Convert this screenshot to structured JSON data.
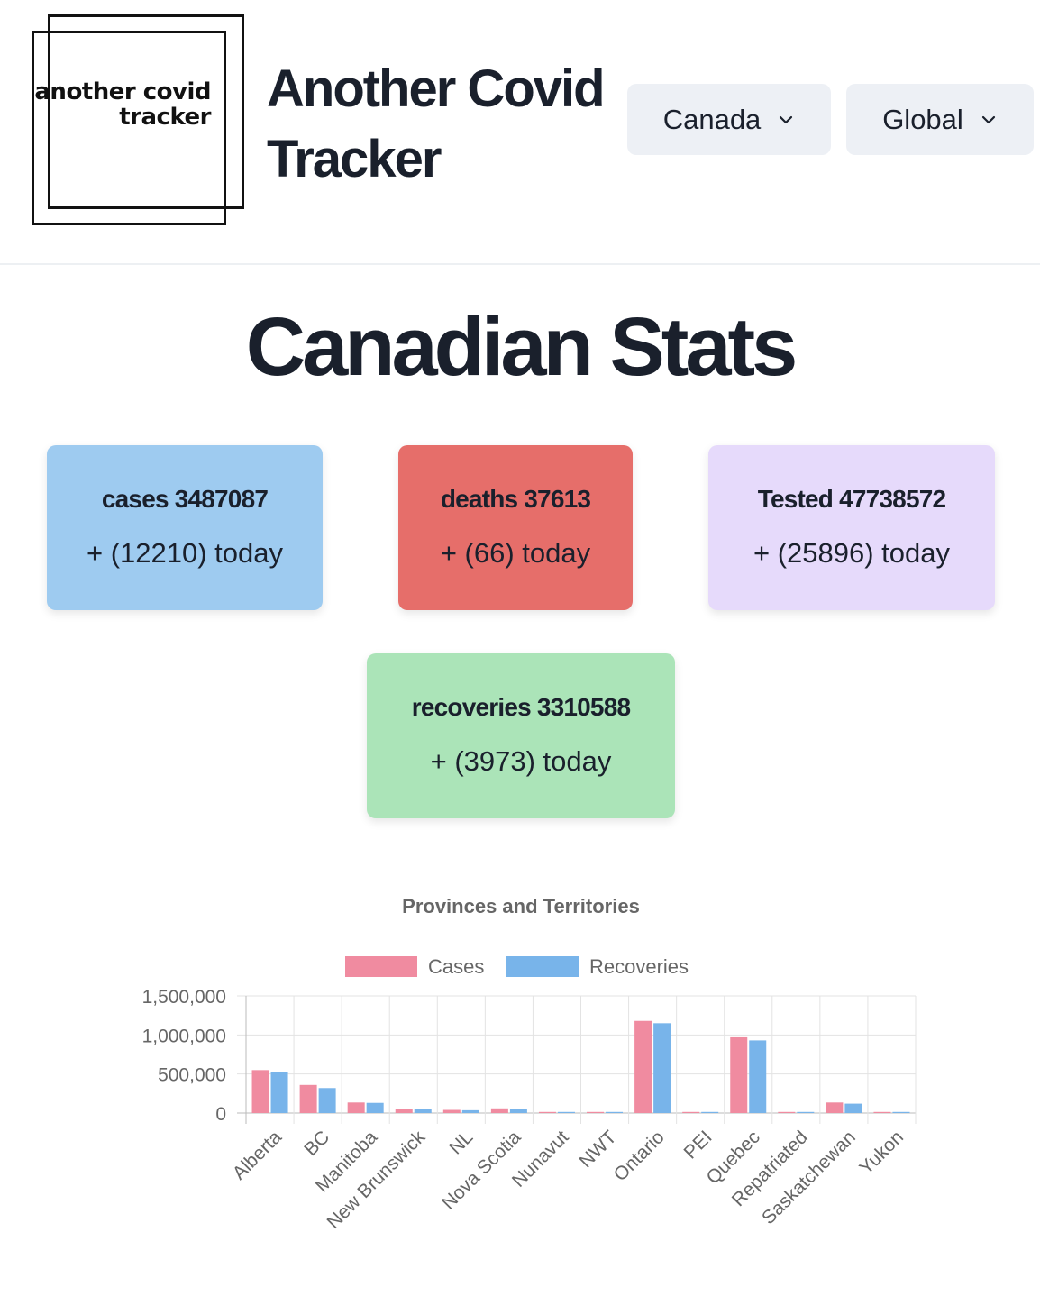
{
  "header": {
    "logo_line1": "another covid",
    "logo_line2": "tracker",
    "title_line1": "Another Covid",
    "title_line2": "Tracker",
    "country_select": "Canada",
    "scope_select": "Global"
  },
  "page_title": "Canadian Stats",
  "stats": {
    "cases": {
      "title": "cases 3487087",
      "today": "+ (12210) today",
      "color": "#9ecbf0"
    },
    "deaths": {
      "title": "deaths 37613",
      "today": "+ (66) today",
      "color": "#e66e6a"
    },
    "tested": {
      "title": "Tested 47738572",
      "today": "+ (25896) today",
      "color": "#e6dafb"
    },
    "recoveries": {
      "title": "recoveries 3310588",
      "today": "+ (3973) today",
      "color": "#abe4b8"
    }
  },
  "chart_data": {
    "type": "bar",
    "title": "Provinces and Territories",
    "categories": [
      "Alberta",
      "BC",
      "Manitoba",
      "New Brunswick",
      "NL",
      "Nova Scotia",
      "Nunavut",
      "NWT",
      "Ontario",
      "PEI",
      "Quebec",
      "Repatriated",
      "Saskatchewan",
      "Yukon"
    ],
    "series": [
      {
        "name": "Cases",
        "color": "#f08ba0",
        "values": [
          550000,
          360000,
          135000,
          55000,
          40000,
          60000,
          4000,
          3000,
          1180000,
          10000,
          970000,
          13,
          135000,
          4000
        ]
      },
      {
        "name": "Recoveries",
        "color": "#78b4ea",
        "values": [
          530000,
          320000,
          130000,
          50000,
          36000,
          50000,
          3900,
          2900,
          1150000,
          9500,
          930000,
          13,
          120000,
          3900
        ]
      }
    ],
    "yticks": [
      "1,500,000",
      "1,000,000",
      "500,000",
      "0"
    ],
    "ylim": [
      0,
      1500000
    ],
    "grid": true,
    "legend": "top"
  }
}
